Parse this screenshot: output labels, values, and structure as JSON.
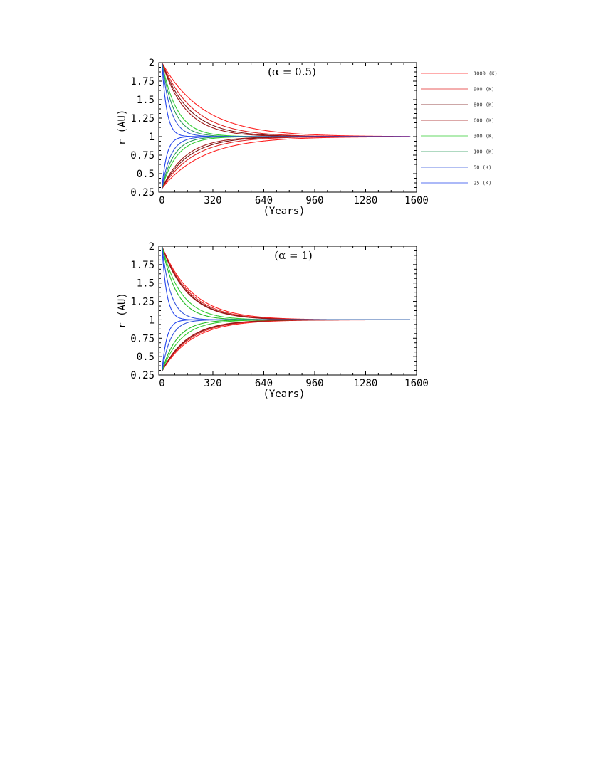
{
  "chart_data": [
    {
      "type": "line",
      "title": "(α = 0.5)",
      "xlabel": "(Years)",
      "ylabel": "r (AU)",
      "xlim": [
        -20,
        1600
      ],
      "ylim": [
        0.25,
        2.0
      ],
      "xticks": [
        "0",
        "320",
        "640",
        "960",
        "1280",
        "1600"
      ],
      "yticks": [
        "0.25",
        "0.5",
        "0.75",
        "1",
        "1.25",
        "1.5",
        "1.75",
        "2"
      ],
      "x_end": 1560,
      "start_values": [
        2.0,
        0.3
      ],
      "converge_value": 1.0,
      "legend_position": "right",
      "series": [
        {
          "name": "1000  (K)",
          "color": "#ff2020",
          "tau": 260
        },
        {
          "name": "900  (K)",
          "color": "#e02828",
          "tau": 200
        },
        {
          "name": "800  (K)",
          "color": "#7a1515",
          "tau": 170
        },
        {
          "name": "600  (K)",
          "color": "#a01818",
          "tau": 150
        },
        {
          "name": "300  (K)",
          "color": "#33cc33",
          "tau": 95
        },
        {
          "name": "100  (K)",
          "color": "#2a9a5a",
          "tau": 75
        },
        {
          "name": "50  (K)",
          "color": "#3355dd",
          "tau": 55
        },
        {
          "name": "25  (K)",
          "color": "#2244ee",
          "tau": 30
        }
      ]
    },
    {
      "type": "line",
      "title": "(α = 1)",
      "xlabel": "(Years)",
      "ylabel": "r (AU)",
      "xlim": [
        -20,
        1600
      ],
      "ylim": [
        0.25,
        2.0
      ],
      "xticks": [
        "0",
        "320",
        "640",
        "960",
        "1280",
        "1600"
      ],
      "yticks": [
        "0.25",
        "0.5",
        "0.75",
        "1",
        "1.25",
        "1.5",
        "1.75",
        "2"
      ],
      "x_end": 1560,
      "start_values": [
        2.0,
        0.3
      ],
      "converge_value": 1.0,
      "series": [
        {
          "color": "#ff2020",
          "tau": 190
        },
        {
          "color": "#e02828",
          "tau": 175
        },
        {
          "color": "#7a1515",
          "tau": 165
        },
        {
          "color": "#a01818",
          "tau": 160
        },
        {
          "color": "#33cc33",
          "tau": 120
        },
        {
          "color": "#22bb22",
          "tau": 95
        },
        {
          "color": "#3355dd",
          "tau": 55
        },
        {
          "color": "#2244ee",
          "tau": 30
        }
      ]
    }
  ]
}
